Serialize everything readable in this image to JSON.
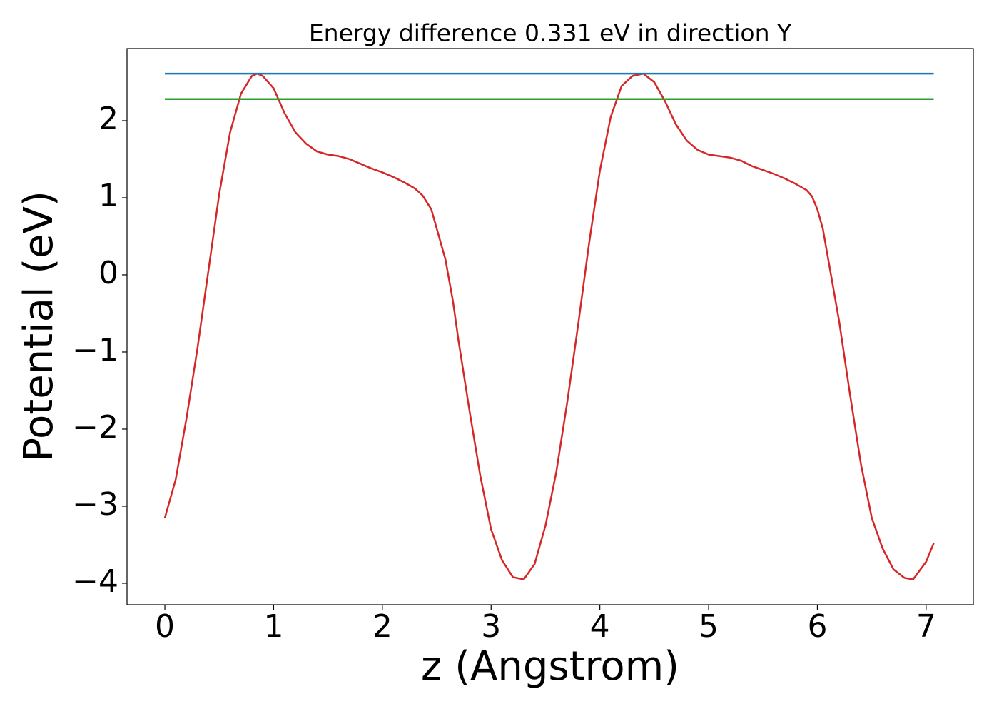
{
  "chart_data": {
    "type": "line",
    "title": "Energy difference 0.331 eV in direction Y",
    "x_label": "z (Angstrom)",
    "y_label": "Potential (eV)",
    "xlim": [
      -0.348,
      7.434
    ],
    "ylim": [
      -4.278,
      2.935
    ],
    "xticks": [
      0,
      1,
      2,
      3,
      4,
      5,
      6,
      7
    ],
    "yticks": [
      {
        "value": -4,
        "label": "−4"
      },
      {
        "value": -3,
        "label": "−3"
      },
      {
        "value": -2,
        "label": "−2"
      },
      {
        "value": -1,
        "label": "−1"
      },
      0,
      1,
      2
    ],
    "grid": false,
    "series": [
      {
        "color": "#d62728",
        "x": [
          0,
          0.1,
          0.2,
          0.3,
          0.4,
          0.5,
          0.6,
          0.7,
          0.8,
          0.85,
          0.9,
          1.0,
          1.1,
          1.2,
          1.3,
          1.4,
          1.5,
          1.6,
          1.7,
          1.8,
          1.9,
          2.0,
          2.1,
          2.2,
          2.3,
          2.37,
          2.45,
          2.5,
          2.58,
          2.65,
          2.7,
          2.8,
          2.9,
          3.0,
          3.1,
          3.2,
          3.3,
          3.4,
          3.5,
          3.6,
          3.7,
          3.8,
          3.9,
          4.0,
          4.1,
          4.2,
          4.3,
          4.4,
          4.5,
          4.6,
          4.7,
          4.8,
          4.9,
          5.0,
          5.1,
          5.2,
          5.3,
          5.4,
          5.5,
          5.6,
          5.7,
          5.8,
          5.9,
          5.95,
          6.0,
          6.05,
          6.1,
          6.2,
          6.3,
          6.4,
          6.5,
          6.6,
          6.7,
          6.8,
          6.88,
          7.0,
          7.07
        ],
        "values": [
          -3.15,
          -2.65,
          -1.85,
          -0.95,
          0.05,
          1.05,
          1.85,
          2.35,
          2.58,
          2.61,
          2.58,
          2.42,
          2.1,
          1.85,
          1.7,
          1.6,
          1.56,
          1.54,
          1.5,
          1.44,
          1.38,
          1.33,
          1.27,
          1.2,
          1.12,
          1.03,
          0.85,
          0.6,
          0.2,
          -0.35,
          -0.85,
          -1.75,
          -2.6,
          -3.3,
          -3.7,
          -3.92,
          -3.95,
          -3.75,
          -3.25,
          -2.55,
          -1.65,
          -0.65,
          0.4,
          1.35,
          2.05,
          2.45,
          2.58,
          2.61,
          2.5,
          2.25,
          1.95,
          1.74,
          1.62,
          1.56,
          1.54,
          1.52,
          1.48,
          1.41,
          1.36,
          1.31,
          1.25,
          1.18,
          1.1,
          1.02,
          0.85,
          0.6,
          0.2,
          -0.6,
          -1.55,
          -2.45,
          -3.15,
          -3.55,
          -3.82,
          -3.93,
          -3.95,
          -3.72,
          -3.48
        ]
      },
      {
        "color": "#1f77b4",
        "x": [
          0,
          7.07
        ],
        "values": [
          2.61,
          2.61
        ]
      },
      {
        "color": "#2ca02c",
        "x": [
          0,
          7.07
        ],
        "values": [
          2.28,
          2.28
        ]
      }
    ]
  }
}
